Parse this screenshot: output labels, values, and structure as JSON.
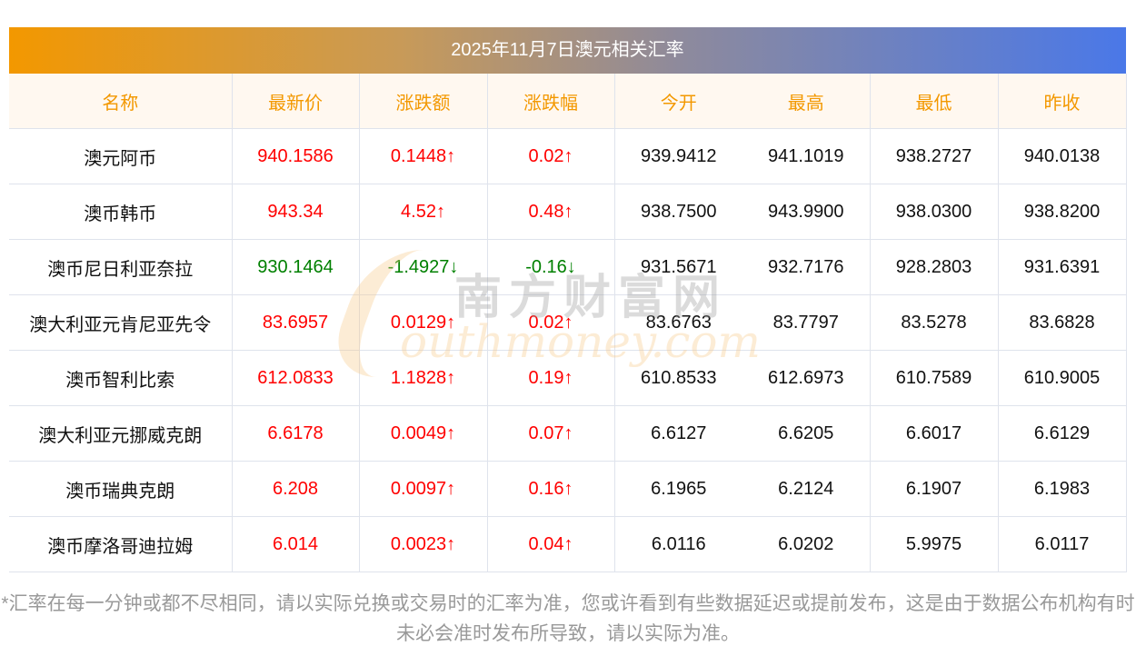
{
  "title": "2025年11月7日澳元相关汇率",
  "columns": [
    "名称",
    "最新价",
    "涨跌额",
    "涨跌幅",
    "今开",
    "最高",
    "最低",
    "昨收"
  ],
  "rows": [
    {
      "name": "澳元阿币",
      "price": "940.1586",
      "change": "0.1448↑",
      "pct": "0.02↑",
      "open": "939.9412",
      "high": "941.1019",
      "low": "938.2727",
      "prev": "940.0138",
      "dir": "up"
    },
    {
      "name": "澳币韩币",
      "price": "943.34",
      "change": "4.52↑",
      "pct": "0.48↑",
      "open": "938.7500",
      "high": "943.9900",
      "low": "938.0300",
      "prev": "938.8200",
      "dir": "up"
    },
    {
      "name": "澳币尼日利亚奈拉",
      "price": "930.1464",
      "change": "-1.4927↓",
      "pct": "-0.16↓",
      "open": "931.5671",
      "high": "932.7176",
      "low": "928.2803",
      "prev": "931.6391",
      "dir": "down"
    },
    {
      "name": "澳大利亚元肯尼亚先令",
      "price": "83.6957",
      "change": "0.0129↑",
      "pct": "0.02↑",
      "open": "83.6763",
      "high": "83.7797",
      "low": "83.5278",
      "prev": "83.6828",
      "dir": "up"
    },
    {
      "name": "澳币智利比索",
      "price": "612.0833",
      "change": "1.1828↑",
      "pct": "0.19↑",
      "open": "610.8533",
      "high": "612.6973",
      "low": "610.7589",
      "prev": "610.9005",
      "dir": "up"
    },
    {
      "name": "澳大利亚元挪威克朗",
      "price": "6.6178",
      "change": "0.0049↑",
      "pct": "0.07↑",
      "open": "6.6127",
      "high": "6.6205",
      "low": "6.6017",
      "prev": "6.6129",
      "dir": "up"
    },
    {
      "name": "澳币瑞典克朗",
      "price": "6.208",
      "change": "0.0097↑",
      "pct": "0.16↑",
      "open": "6.1965",
      "high": "6.2124",
      "low": "6.1907",
      "prev": "6.1983",
      "dir": "up"
    },
    {
      "name": "澳币摩洛哥迪拉姆",
      "price": "6.014",
      "change": "0.0023↑",
      "pct": "0.04↑",
      "open": "6.0116",
      "high": "6.0202",
      "low": "5.9975",
      "prev": "6.0117",
      "dir": "up"
    }
  ],
  "footnote": "*汇率在每一分钟或都不尽相同，请以实际兑换或交易时的汇率为准，您或许看到有些数据延迟或提前发布，这是由于数据公布机构有时未必会准时发布所导致，请以实际为准。",
  "watermark": {
    "cn": "南方财富网",
    "en": "outhmoney.com"
  },
  "colors": {
    "up": "#ff0000",
    "down": "#008000",
    "header_text": "#f39800",
    "gradient_start": "#f39800",
    "gradient_end": "#4a78e8"
  }
}
